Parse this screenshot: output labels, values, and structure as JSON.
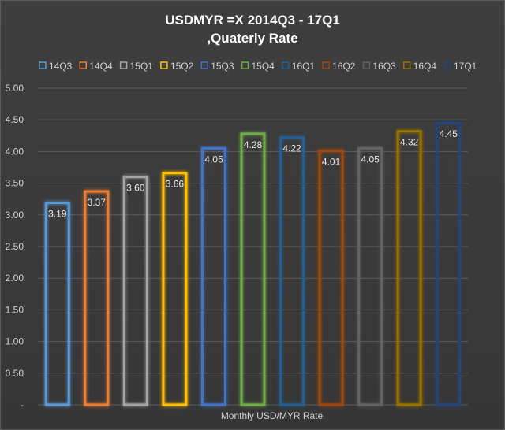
{
  "title_line1": "USDMYR =X  2014Q3 - 17Q1",
  "title_line2": ",Quaterly Rate",
  "chart_data": {
    "type": "bar",
    "title": "USDMYR =X  2014Q3 - 17Q1 ,Quaterly Rate",
    "xlabel": "Monthly USD/MYR Rate",
    "ylabel": "",
    "ylim": [
      0,
      5
    ],
    "yticks": [
      0,
      0.5,
      1,
      1.5,
      2,
      2.5,
      3,
      3.5,
      4,
      4.5,
      5
    ],
    "ytick_labels": [
      "-",
      "0.50",
      "1.00",
      "1.50",
      "2.00",
      "2.50",
      "3.00",
      "3.50",
      "4.00",
      "4.50",
      "5.00"
    ],
    "legend_position": "top",
    "grid": true,
    "series": [
      {
        "name": "14Q3",
        "value": 3.19,
        "label": "3.19",
        "color": "#5b9bd5"
      },
      {
        "name": "14Q4",
        "value": 3.37,
        "label": "3.37",
        "color": "#ed7d31"
      },
      {
        "name": "15Q1",
        "value": 3.6,
        "label": "3.60",
        "color": "#a5a5a5"
      },
      {
        "name": "15Q2",
        "value": 3.66,
        "label": "3.66",
        "color": "#ffc000"
      },
      {
        "name": "15Q3",
        "value": 4.05,
        "label": "4.05",
        "color": "#4472c4"
      },
      {
        "name": "15Q4",
        "value": 4.28,
        "label": "4.28",
        "color": "#70ad47"
      },
      {
        "name": "16Q1",
        "value": 4.22,
        "label": "4.22",
        "color": "#255e91"
      },
      {
        "name": "16Q2",
        "value": 4.01,
        "label": "4.01",
        "color": "#9e480e"
      },
      {
        "name": "16Q3",
        "value": 4.05,
        "label": "4.05",
        "color": "#636363"
      },
      {
        "name": "16Q4",
        "value": 4.32,
        "label": "4.32",
        "color": "#997300"
      },
      {
        "name": "17Q1",
        "value": 4.45,
        "label": "4.45",
        "color": "#264478"
      }
    ]
  }
}
